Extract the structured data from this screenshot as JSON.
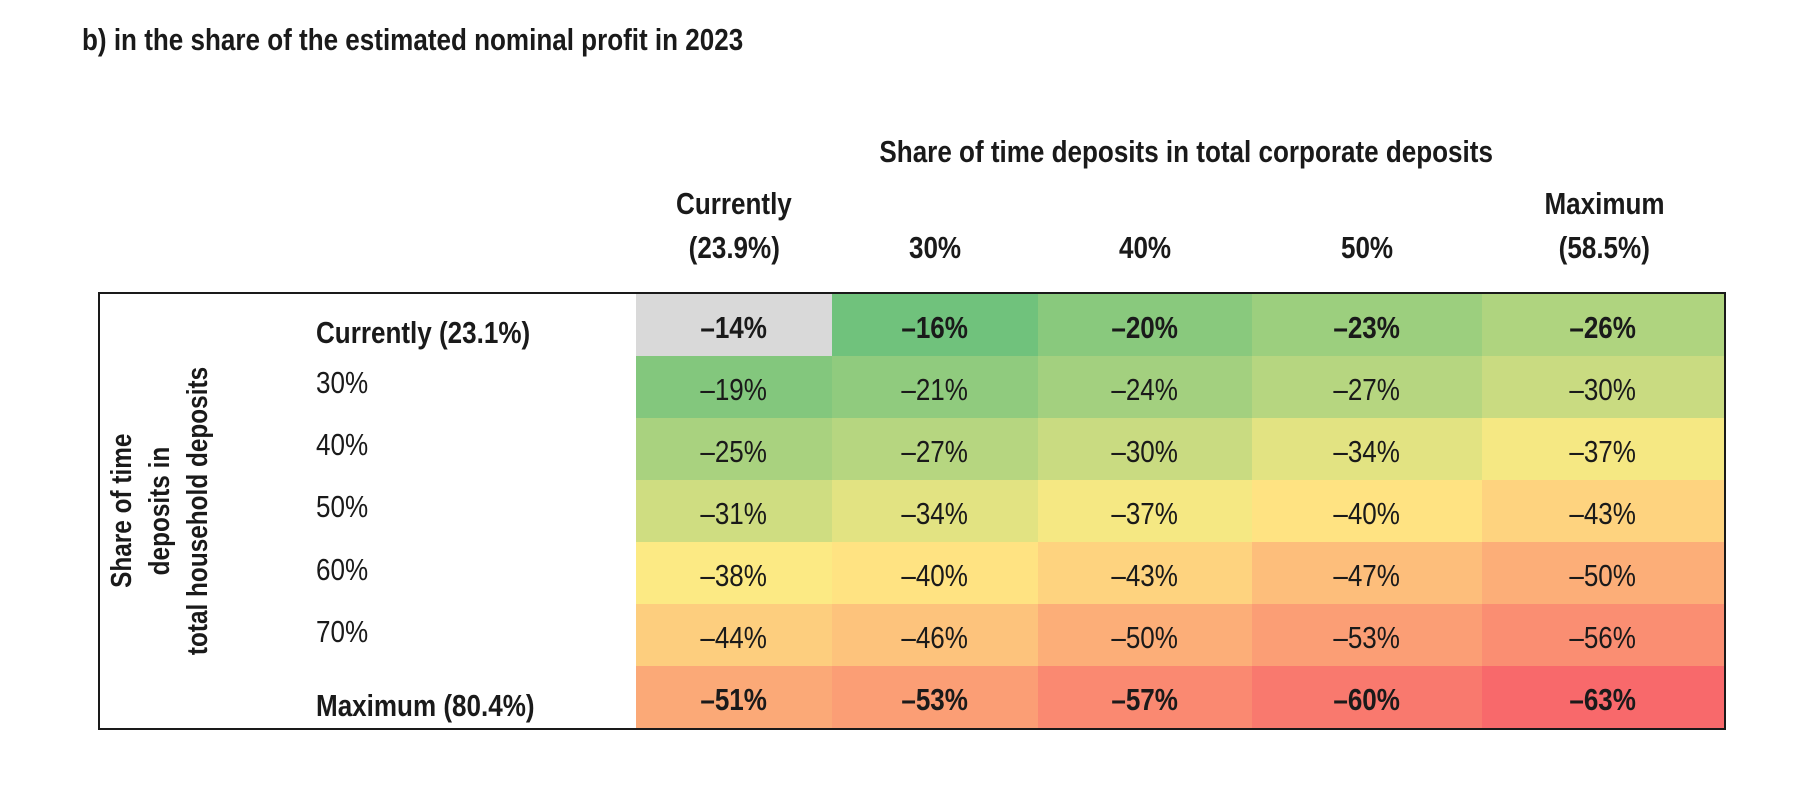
{
  "title": "b) in the share of the estimated nominal profit in 2023",
  "chart_data": {
    "type": "heatmap",
    "title": "b) in the share of the estimated nominal profit in 2023",
    "column_axis_label": "Share of time deposits in total corporate deposits",
    "row_axis_label": [
      "Share of time",
      "deposits in",
      "total household deposits"
    ],
    "columns": [
      {
        "line1": "Currently",
        "line2": "(23.9%)"
      },
      {
        "line1": "",
        "line2": "30%"
      },
      {
        "line1": "",
        "line2": "40%"
      },
      {
        "line1": "",
        "line2": "50%"
      },
      {
        "line1": "Maximum",
        "line2": "(58.5%)"
      }
    ],
    "rows": [
      "Currently (23.1%)",
      "30%",
      "40%",
      "50%",
      "60%",
      "70%",
      "Maximum (80.4%)"
    ],
    "bold_rows": [
      0,
      6
    ],
    "values": [
      [
        -14,
        -16,
        -20,
        -23,
        -26
      ],
      [
        -19,
        -21,
        -24,
        -27,
        -30
      ],
      [
        -25,
        -27,
        -30,
        -34,
        -37
      ],
      [
        -31,
        -34,
        -37,
        -40,
        -43
      ],
      [
        -38,
        -40,
        -43,
        -47,
        -50
      ],
      [
        -44,
        -46,
        -50,
        -53,
        -56
      ],
      [
        -51,
        -53,
        -57,
        -60,
        -63
      ]
    ],
    "cell_text": [
      [
        "–14%",
        "–16%",
        "–20%",
        "–23%",
        "–26%"
      ],
      [
        "–19%",
        "–21%",
        "–24%",
        "–27%",
        "–30%"
      ],
      [
        "–25%",
        "–27%",
        "–30%",
        "–34%",
        "–37%"
      ],
      [
        "–31%",
        "–34%",
        "–37%",
        "–40%",
        "–43%"
      ],
      [
        "–38%",
        "–40%",
        "–43%",
        "–47%",
        "–50%"
      ],
      [
        "–44%",
        "–46%",
        "–50%",
        "–53%",
        "–56%"
      ],
      [
        "–51%",
        "–53%",
        "–57%",
        "–60%",
        "–63%"
      ]
    ],
    "baseline_cell_color": "#d9d9d9",
    "color_scale": [
      "#63be7b",
      "#ffeb84",
      "#f8696b"
    ]
  }
}
